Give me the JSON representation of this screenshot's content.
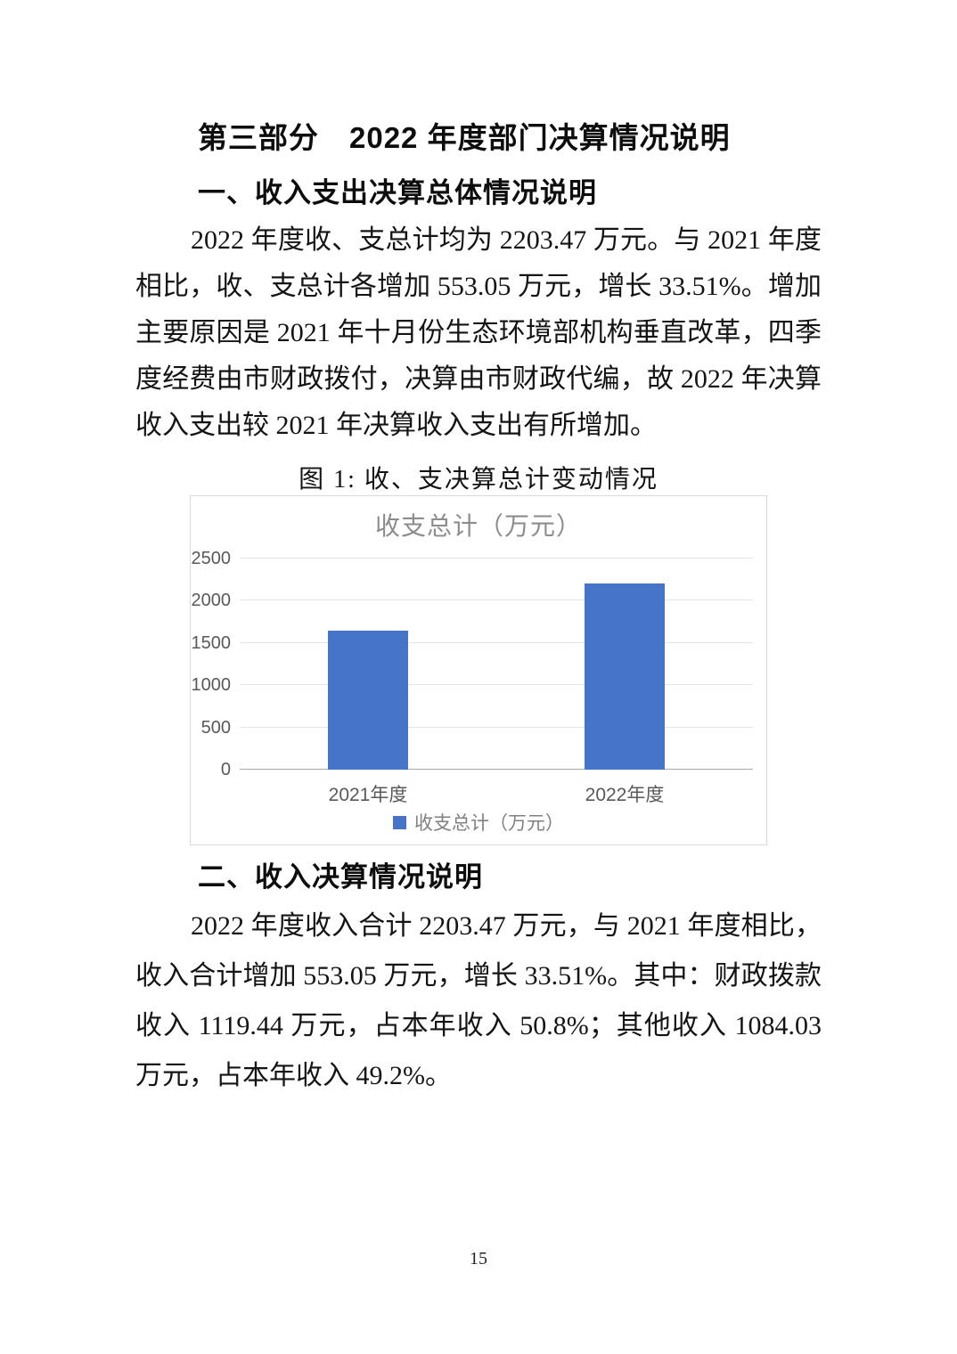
{
  "headings": {
    "part_title": "第三部分　2022 年度部门决算情况说明",
    "section1": "一、收入支出决算总体情况说明",
    "section2": "二、收入决算情况说明"
  },
  "paragraph1": {
    "lines": [
      "2022 年度收、支总计均为 2203.47 万元。与 2021 年度",
      "相比，收、支总计各增加 553.05 万元，增长 33.51%。增加",
      "主要原因是 2021 年十月份生态环境部机构垂直改革，四季",
      "度经费由市财政拨付，决算由市财政代编，故 2022 年决算",
      "收入支出较 2021 年决算收入支出有所增加。"
    ]
  },
  "figure": {
    "caption": "图 1: 收、支决算总计变动情况"
  },
  "chart_data": {
    "type": "bar",
    "title": "收支总计（万元）",
    "categories": [
      "2021年度",
      "2022年度"
    ],
    "values": [
      1650.42,
      2203.47
    ],
    "legend": [
      "收支总计（万元）"
    ],
    "ylim": [
      0,
      2500
    ],
    "yticks": [
      0,
      500,
      1000,
      1500,
      2000,
      2500
    ],
    "bar_color": "#4674c8",
    "grid": true,
    "legend_position": "bottom"
  },
  "paragraph2": {
    "lines": [
      "2022 年度收入合计 2203.47 万元，与 2021 年度相比，",
      "收入合计增加 553.05 万元，增长 33.51%。其中：财政拨款",
      "收入 1119.44 万元，占本年收入 50.8%；其他收入 1084.03",
      "万元，占本年收入 49.2%。"
    ]
  },
  "page": {
    "number": "15"
  }
}
